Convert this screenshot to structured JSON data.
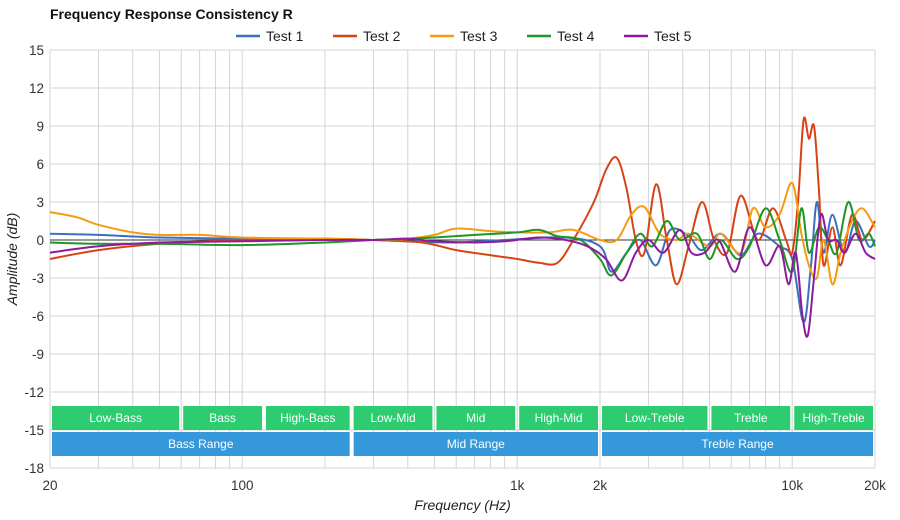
{
  "chart_data": {
    "type": "line",
    "title": "Frequency Response Consistency R",
    "xlabel": "Frequency (Hz)",
    "ylabel": "Amplitude (dB)",
    "xscale": "log",
    "xlim": [
      20,
      20000
    ],
    "ylim": [
      -18,
      15
    ],
    "yticks": [
      15,
      12,
      9,
      6,
      3,
      0,
      -3,
      -6,
      -9,
      -12,
      -15,
      -18
    ],
    "xticks": [
      {
        "value": 20,
        "label": "20"
      },
      {
        "value": 100,
        "label": "100"
      },
      {
        "value": 1000,
        "label": "1k"
      },
      {
        "value": 2000,
        "label": "2k"
      },
      {
        "value": 10000,
        "label": "10k"
      },
      {
        "value": 20000,
        "label": "20k"
      }
    ],
    "legend_position": "top-center",
    "bands_top": [
      {
        "label": "Low-Bass",
        "from": 20,
        "to": 60
      },
      {
        "label": "Bass",
        "from": 60,
        "to": 120
      },
      {
        "label": "High-Bass",
        "from": 120,
        "to": 250
      },
      {
        "label": "Low-Mid",
        "from": 250,
        "to": 500
      },
      {
        "label": "Mid",
        "from": 500,
        "to": 1000
      },
      {
        "label": "High-Mid",
        "from": 1000,
        "to": 2000
      },
      {
        "label": "Low-Treble",
        "from": 2000,
        "to": 5000
      },
      {
        "label": "Treble",
        "from": 5000,
        "to": 10000
      },
      {
        "label": "High-Treble",
        "from": 10000,
        "to": 20000
      }
    ],
    "bands_bottom": [
      {
        "label": "Bass Range",
        "from": 20,
        "to": 250
      },
      {
        "label": "Mid Range",
        "from": 250,
        "to": 2000
      },
      {
        "label": "Treble Range",
        "from": 2000,
        "to": 20000
      }
    ],
    "band_colors": {
      "top": "#2ecc71",
      "bottom": "#3498db"
    },
    "series": [
      {
        "name": "Test 1",
        "color": "#3c6fbe",
        "points": [
          [
            20,
            0.5
          ],
          [
            30,
            0.4
          ],
          [
            50,
            0.2
          ],
          [
            100,
            0.1
          ],
          [
            200,
            0.1
          ],
          [
            300,
            0
          ],
          [
            400,
            -0.1
          ],
          [
            600,
            -0.2
          ],
          [
            900,
            0
          ],
          [
            1500,
            0.2
          ],
          [
            2000,
            -0.5
          ],
          [
            2200,
            -2.5
          ],
          [
            2500,
            -1
          ],
          [
            2800,
            0
          ],
          [
            3200,
            -2
          ],
          [
            3600,
            0.8
          ],
          [
            4200,
            0.3
          ],
          [
            4700,
            -0.8
          ],
          [
            5500,
            0.5
          ],
          [
            6500,
            -1.2
          ],
          [
            7500,
            0.5
          ],
          [
            9000,
            -0.5
          ],
          [
            10000,
            -1.5
          ],
          [
            11000,
            -6.5
          ],
          [
            11700,
            -2
          ],
          [
            12300,
            3
          ],
          [
            13000,
            -1
          ],
          [
            14000,
            2
          ],
          [
            15500,
            -1
          ],
          [
            17000,
            1.5
          ],
          [
            19000,
            -0.5
          ],
          [
            20000,
            0
          ]
        ]
      },
      {
        "name": "Test 2",
        "color": "#d84315",
        "points": [
          [
            20,
            -1.5
          ],
          [
            30,
            -0.8
          ],
          [
            50,
            -0.3
          ],
          [
            100,
            0
          ],
          [
            200,
            0.1
          ],
          [
            300,
            0
          ],
          [
            450,
            -0.2
          ],
          [
            600,
            -0.8
          ],
          [
            800,
            -1.2
          ],
          [
            1000,
            -1.5
          ],
          [
            1200,
            -1.8
          ],
          [
            1400,
            -1.8
          ],
          [
            1600,
            0
          ],
          [
            1900,
            3
          ],
          [
            2100,
            5.5
          ],
          [
            2300,
            6.5
          ],
          [
            2500,
            4
          ],
          [
            2700,
            0
          ],
          [
            2900,
            -1
          ],
          [
            3200,
            4.4
          ],
          [
            3500,
            0
          ],
          [
            3800,
            -3.5
          ],
          [
            4200,
            -0.5
          ],
          [
            4700,
            3
          ],
          [
            5200,
            0
          ],
          [
            5800,
            -1
          ],
          [
            6500,
            3.5
          ],
          [
            7500,
            0
          ],
          [
            8500,
            2.5
          ],
          [
            9500,
            0
          ],
          [
            10000,
            -1
          ],
          [
            10500,
            3
          ],
          [
            11000,
            9.5
          ],
          [
            11500,
            8
          ],
          [
            12000,
            9
          ],
          [
            12500,
            4
          ],
          [
            13000,
            -2
          ],
          [
            14000,
            1
          ],
          [
            15000,
            -2
          ],
          [
            16500,
            2
          ],
          [
            18000,
            0
          ],
          [
            20000,
            1.5
          ]
        ]
      },
      {
        "name": "Test 3",
        "color": "#f39c12",
        "points": [
          [
            20,
            2.2
          ],
          [
            25,
            1.8
          ],
          [
            30,
            1.2
          ],
          [
            40,
            0.6
          ],
          [
            50,
            0.4
          ],
          [
            70,
            0.4
          ],
          [
            100,
            0.2
          ],
          [
            200,
            0.1
          ],
          [
            300,
            0
          ],
          [
            400,
            0.1
          ],
          [
            500,
            0.4
          ],
          [
            600,
            0.9
          ],
          [
            800,
            0.7
          ],
          [
            1000,
            0.6
          ],
          [
            1300,
            0.6
          ],
          [
            1600,
            0.8
          ],
          [
            2000,
            0
          ],
          [
            2300,
            0
          ],
          [
            2600,
            2
          ],
          [
            2900,
            2.6
          ],
          [
            3300,
            0.5
          ],
          [
            3800,
            0
          ],
          [
            4200,
            0.5
          ],
          [
            5000,
            -0.5
          ],
          [
            5500,
            0.5
          ],
          [
            6500,
            -1
          ],
          [
            7200,
            2.5
          ],
          [
            8000,
            1
          ],
          [
            9000,
            2
          ],
          [
            10000,
            4.5
          ],
          [
            10800,
            0.5
          ],
          [
            11500,
            -2
          ],
          [
            12300,
            -3
          ],
          [
            13000,
            0
          ],
          [
            14000,
            -3.5
          ],
          [
            15000,
            -1
          ],
          [
            16500,
            1.5
          ],
          [
            18000,
            2.5
          ],
          [
            20000,
            1
          ]
        ]
      },
      {
        "name": "Test 4",
        "color": "#1e9628",
        "points": [
          [
            20,
            -0.2
          ],
          [
            30,
            -0.3
          ],
          [
            50,
            -0.3
          ],
          [
            100,
            -0.4
          ],
          [
            200,
            -0.2
          ],
          [
            300,
            0
          ],
          [
            400,
            0.1
          ],
          [
            500,
            0.2
          ],
          [
            700,
            0.4
          ],
          [
            1000,
            0.6
          ],
          [
            1200,
            0.8
          ],
          [
            1400,
            0.3
          ],
          [
            1700,
            0
          ],
          [
            2000,
            -1.5
          ],
          [
            2200,
            -2.8
          ],
          [
            2500,
            -1
          ],
          [
            2800,
            0.5
          ],
          [
            3100,
            -0.5
          ],
          [
            3500,
            1.5
          ],
          [
            3900,
            0
          ],
          [
            4500,
            0.5
          ],
          [
            5000,
            -1.5
          ],
          [
            5500,
            0
          ],
          [
            6300,
            -1.5
          ],
          [
            7000,
            -0.5
          ],
          [
            8000,
            2.5
          ],
          [
            9000,
            0
          ],
          [
            10000,
            -2.5
          ],
          [
            10800,
            2.5
          ],
          [
            11500,
            -1
          ],
          [
            12500,
            1
          ],
          [
            13500,
            0
          ],
          [
            14500,
            -1
          ],
          [
            16000,
            3
          ],
          [
            17500,
            0
          ],
          [
            19000,
            0.5
          ],
          [
            20000,
            -0.5
          ]
        ]
      },
      {
        "name": "Test 5",
        "color": "#8e1b9e",
        "points": [
          [
            20,
            -1
          ],
          [
            30,
            -0.5
          ],
          [
            50,
            -0.2
          ],
          [
            100,
            -0.1
          ],
          [
            200,
            0
          ],
          [
            300,
            0
          ],
          [
            400,
            0.1
          ],
          [
            500,
            -0.1
          ],
          [
            700,
            -0.2
          ],
          [
            900,
            -0.1
          ],
          [
            1200,
            0.2
          ],
          [
            1500,
            0
          ],
          [
            1800,
            -0.5
          ],
          [
            2100,
            -1.5
          ],
          [
            2400,
            -3.2
          ],
          [
            2700,
            -1
          ],
          [
            3000,
            0
          ],
          [
            3400,
            -1
          ],
          [
            3900,
            0.8
          ],
          [
            4300,
            -1
          ],
          [
            4800,
            -1
          ],
          [
            5400,
            0
          ],
          [
            6200,
            -2.5
          ],
          [
            7000,
            1
          ],
          [
            8000,
            -2
          ],
          [
            9000,
            -0.5
          ],
          [
            9700,
            -3.5
          ],
          [
            10300,
            -1
          ],
          [
            10900,
            -6
          ],
          [
            11400,
            -7.5
          ],
          [
            12000,
            -3
          ],
          [
            12700,
            2
          ],
          [
            13500,
            0
          ],
          [
            14500,
            0
          ],
          [
            15500,
            -1
          ],
          [
            17000,
            0.5
          ],
          [
            18500,
            -1
          ],
          [
            20000,
            -1.5
          ]
        ]
      }
    ]
  }
}
